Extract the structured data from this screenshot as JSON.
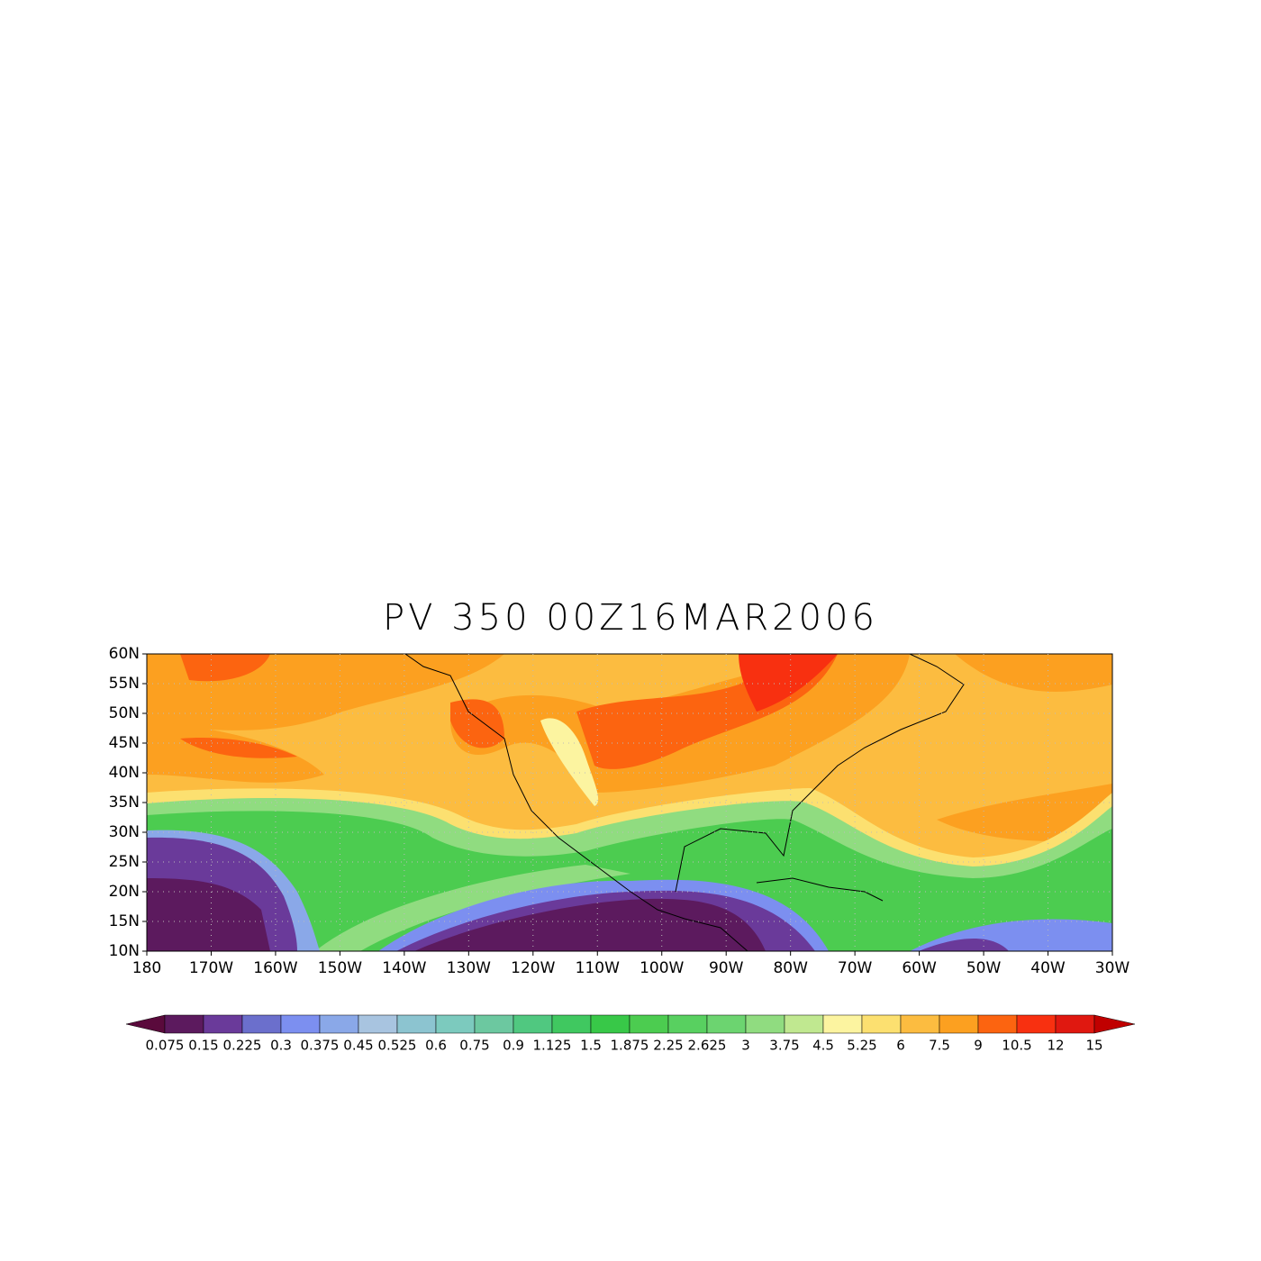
{
  "title": "PV 350 00Z16MAR2006",
  "map": {
    "lon_labels": [
      "180",
      "170W",
      "160W",
      "150W",
      "140W",
      "130W",
      "120W",
      "110W",
      "100W",
      "90W",
      "80W",
      "70W",
      "60W",
      "50W",
      "40W",
      "30W"
    ],
    "lat_labels": [
      "60N",
      "55N",
      "50N",
      "45N",
      "40N",
      "35N",
      "30N",
      "25N",
      "20N",
      "15N",
      "10N"
    ]
  },
  "colorbar": {
    "levels": [
      0.075,
      0.15,
      0.225,
      0.3,
      0.375,
      0.45,
      0.525,
      0.6,
      0.75,
      0.9,
      1.125,
      1.5,
      1.875,
      2.25,
      2.625,
      3,
      3.75,
      4.5,
      5.25,
      6,
      7.5,
      9,
      10.5,
      12,
      15
    ],
    "colors": [
      "#5a0a3c",
      "#5c1a5e",
      "#6a3a9a",
      "#6b6fcc",
      "#7c8ff0",
      "#8aa8e8",
      "#a8c4e0",
      "#8cc4d0",
      "#7ccabe",
      "#6cc8a0",
      "#50c880",
      "#40c860",
      "#38c848",
      "#4ccc50",
      "#58d060",
      "#6cd470",
      "#90dc80",
      "#c0e890",
      "#fcf4a0",
      "#fce070",
      "#fcbc40",
      "#fca020",
      "#fc6410",
      "#f83010",
      "#e01810",
      "#c00000"
    ]
  }
}
